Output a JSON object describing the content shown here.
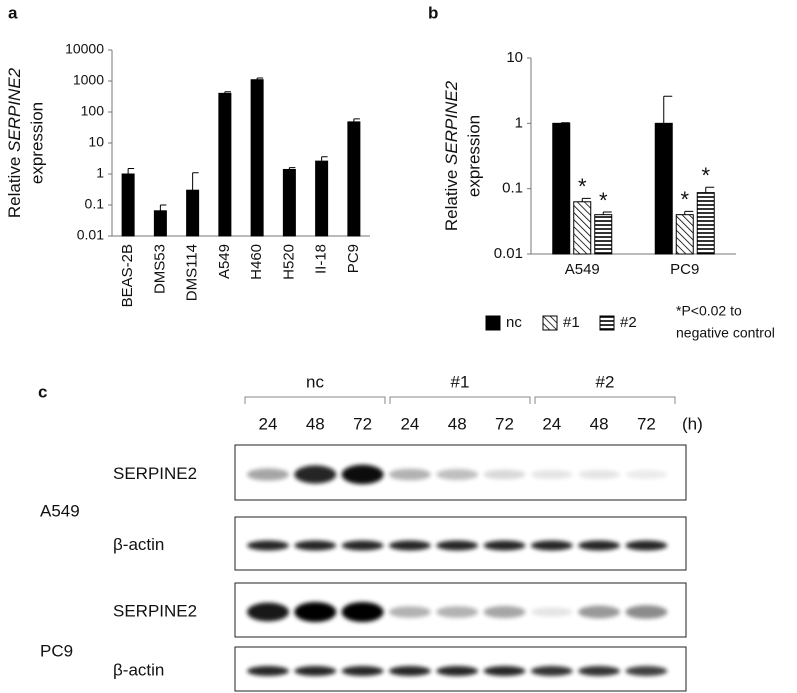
{
  "chart_data": [
    {
      "type": "bar",
      "panel_label": "a",
      "y_label": [
        "Relative",
        "SERPINE2",
        "expression"
      ],
      "categories": [
        "BEAS-2B",
        "DMS53",
        "DMS114",
        "A549",
        "H460",
        "H520",
        "II-18",
        "PC9"
      ],
      "values": [
        1,
        0.065,
        0.3,
        400,
        1100,
        1.4,
        2.6,
        48
      ],
      "errors": [
        0.5,
        0.035,
        0.8,
        50,
        150,
        0.2,
        1.0,
        12
      ],
      "color": "#000000",
      "yscale": "log",
      "ylim": [
        0.01,
        10000
      ],
      "yticks": [
        0.01,
        0.1,
        1,
        10,
        100,
        1000,
        10000
      ]
    },
    {
      "type": "bar",
      "panel_label": "b",
      "y_label": [
        "Relative",
        "SERPINE2",
        "expression"
      ],
      "categories": [
        "A549",
        "PC9"
      ],
      "series": [
        {
          "name": "nc",
          "color": "#000000",
          "fill": "solid",
          "values": [
            1,
            1
          ],
          "errors": [
            0.02,
            1.6
          ]
        },
        {
          "name": "#1",
          "color": "#000000",
          "fill": "diagonal",
          "values": [
            0.063,
            0.04
          ],
          "errors": [
            0.008,
            0.005
          ],
          "annotations": [
            "*",
            "*"
          ]
        },
        {
          "name": "#2",
          "color": "#000000",
          "fill": "horizontal",
          "values": [
            0.04,
            0.087
          ],
          "errors": [
            0.004,
            0.018
          ],
          "annotations": [
            "*",
            "*"
          ]
        }
      ],
      "yscale": "log",
      "ylim": [
        0.01,
        10
      ],
      "yticks": [
        0.01,
        0.1,
        1,
        10
      ],
      "legend": "bottom",
      "note": [
        "*P<0.02 to",
        "negative control"
      ]
    }
  ],
  "blot": {
    "panel_label": "c",
    "groups": [
      {
        "name": "nc",
        "times": [
          "24",
          "48",
          "72"
        ]
      },
      {
        "name": "#1",
        "times": [
          "24",
          "48",
          "72"
        ]
      },
      {
        "name": "#2",
        "times": [
          "24",
          "48",
          "72"
        ]
      }
    ],
    "time_unit": "(h)",
    "cell_lines": [
      {
        "name": "A549",
        "rows": [
          "SERPINE2",
          "β-actin"
        ]
      },
      {
        "name": "PC9",
        "rows": [
          "SERPINE2",
          "β-actin"
        ]
      }
    ]
  }
}
